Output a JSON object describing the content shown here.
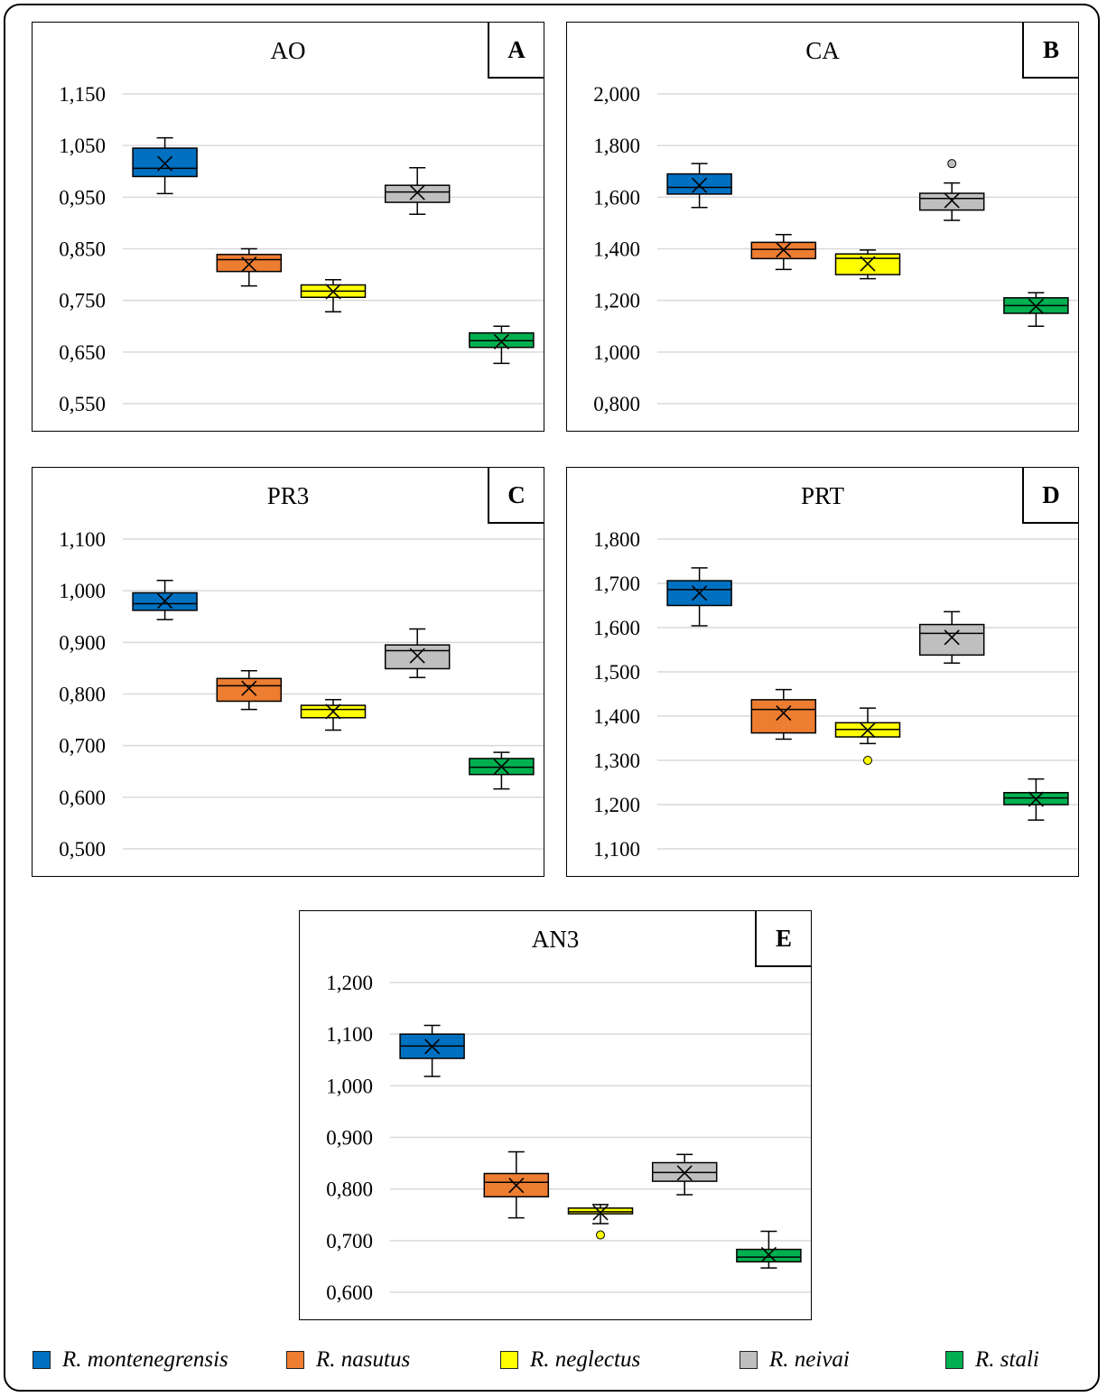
{
  "colors": {
    "R. montenegrensis": "#0070c0",
    "R. nasutus": "#ed7d31",
    "R. neglectus": "#ffff00",
    "R. neivai": "#bfbfbf",
    "R. stali": "#00b050"
  },
  "legend": [
    "R. montenegrensis",
    "R. nasutus",
    "R. neglectus",
    "R. neivai",
    "R. stali"
  ],
  "panels": {
    "A": {
      "title": "AO",
      "letter": "A"
    },
    "B": {
      "title": "CA",
      "letter": "B"
    },
    "C": {
      "title": "PR3",
      "letter": "C"
    },
    "D": {
      "title": "PRT",
      "letter": "D"
    },
    "E": {
      "title": "AN3",
      "letter": "E"
    }
  },
  "chart_data": [
    {
      "type": "box",
      "title": "AO",
      "ylim": [
        0.55,
        1.15
      ],
      "yticks": [
        0.55,
        0.65,
        0.75,
        0.85,
        0.95,
        1.05,
        1.15
      ],
      "ytick_labels": [
        "0,550",
        "0,650",
        "0,750",
        "0,850",
        "0,950",
        "1,050",
        "1,150"
      ],
      "gridlines": true,
      "series": [
        {
          "name": "R. montenegrensis",
          "min": 0.957,
          "q1": 0.99,
          "median": 1.006,
          "q3": 1.045,
          "max": 1.065,
          "mean": 1.015,
          "outliers": []
        },
        {
          "name": "R. nasutus",
          "min": 0.778,
          "q1": 0.806,
          "median": 0.829,
          "q3": 0.839,
          "max": 0.85,
          "mean": 0.82,
          "outliers": []
        },
        {
          "name": "R. neglectus",
          "min": 0.728,
          "q1": 0.756,
          "median": 0.768,
          "q3": 0.78,
          "max": 0.79,
          "mean": 0.767,
          "outliers": []
        },
        {
          "name": "R. neivai",
          "min": 0.917,
          "q1": 0.94,
          "median": 0.96,
          "q3": 0.973,
          "max": 1.007,
          "mean": 0.959,
          "outliers": []
        },
        {
          "name": "R. stali",
          "min": 0.628,
          "q1": 0.659,
          "median": 0.672,
          "q3": 0.687,
          "max": 0.7,
          "mean": 0.67,
          "outliers": []
        }
      ]
    },
    {
      "type": "box",
      "title": "CA",
      "ylim": [
        0.8,
        2.0
      ],
      "yticks": [
        0.8,
        1.0,
        1.2,
        1.4,
        1.6,
        1.8,
        2.0
      ],
      "ytick_labels": [
        "0,800",
        "1,000",
        "1,200",
        "1,400",
        "1,600",
        "1,800",
        "2,000"
      ],
      "gridlines": true,
      "series": [
        {
          "name": "R. montenegrensis",
          "min": 1.56,
          "q1": 1.612,
          "median": 1.638,
          "q3": 1.69,
          "max": 1.73,
          "mean": 1.646,
          "outliers": []
        },
        {
          "name": "R. nasutus",
          "min": 1.32,
          "q1": 1.362,
          "median": 1.398,
          "q3": 1.425,
          "max": 1.455,
          "mean": 1.396,
          "outliers": []
        },
        {
          "name": "R. neglectus",
          "min": 1.284,
          "q1": 1.3,
          "median": 1.363,
          "q3": 1.38,
          "max": 1.395,
          "mean": 1.342,
          "outliers": []
        },
        {
          "name": "R. neivai",
          "min": 1.51,
          "q1": 1.55,
          "median": 1.595,
          "q3": 1.615,
          "max": 1.655,
          "mean": 1.587,
          "outliers": [
            1.73
          ]
        },
        {
          "name": "R. stali",
          "min": 1.1,
          "q1": 1.15,
          "median": 1.18,
          "q3": 1.21,
          "max": 1.23,
          "mean": 1.177,
          "outliers": []
        }
      ]
    },
    {
      "type": "box",
      "title": "PR3",
      "ylim": [
        0.5,
        1.1
      ],
      "yticks": [
        0.5,
        0.6,
        0.7,
        0.8,
        0.9,
        1.0,
        1.1
      ],
      "ytick_labels": [
        "0,500",
        "0,600",
        "0,700",
        "0,800",
        "0,900",
        "1,000",
        "1,100"
      ],
      "gridlines": true,
      "series": [
        {
          "name": "R. montenegrensis",
          "min": 0.944,
          "q1": 0.962,
          "median": 0.975,
          "q3": 0.996,
          "max": 1.02,
          "mean": 0.98,
          "outliers": []
        },
        {
          "name": "R. nasutus",
          "min": 0.77,
          "q1": 0.786,
          "median": 0.816,
          "q3": 0.83,
          "max": 0.845,
          "mean": 0.811,
          "outliers": []
        },
        {
          "name": "R. neglectus",
          "min": 0.73,
          "q1": 0.754,
          "median": 0.77,
          "q3": 0.778,
          "max": 0.789,
          "mean": 0.766,
          "outliers": []
        },
        {
          "name": "R. neivai",
          "min": 0.832,
          "q1": 0.849,
          "median": 0.884,
          "q3": 0.895,
          "max": 0.926,
          "mean": 0.874,
          "outliers": []
        },
        {
          "name": "R. stali",
          "min": 0.616,
          "q1": 0.644,
          "median": 0.658,
          "q3": 0.675,
          "max": 0.687,
          "mean": 0.659,
          "outliers": []
        }
      ]
    },
    {
      "type": "box",
      "title": "PRT",
      "ylim": [
        1.1,
        1.8
      ],
      "yticks": [
        1.1,
        1.2,
        1.3,
        1.4,
        1.5,
        1.6,
        1.7,
        1.8
      ],
      "ytick_labels": [
        "1,100",
        "1,200",
        "1,300",
        "1,400",
        "1,500",
        "1,600",
        "1,700",
        "1,800"
      ],
      "gridlines": true,
      "series": [
        {
          "name": "R. montenegrensis",
          "min": 1.604,
          "q1": 1.65,
          "median": 1.686,
          "q3": 1.706,
          "max": 1.735,
          "mean": 1.678,
          "outliers": []
        },
        {
          "name": "R. nasutus",
          "min": 1.348,
          "q1": 1.362,
          "median": 1.415,
          "q3": 1.437,
          "max": 1.46,
          "mean": 1.407,
          "outliers": []
        },
        {
          "name": "R. neglectus",
          "min": 1.338,
          "q1": 1.353,
          "median": 1.37,
          "q3": 1.385,
          "max": 1.418,
          "mean": 1.368,
          "outliers": [
            1.3
          ]
        },
        {
          "name": "R. neivai",
          "min": 1.52,
          "q1": 1.538,
          "median": 1.587,
          "q3": 1.607,
          "max": 1.636,
          "mean": 1.578,
          "outliers": []
        },
        {
          "name": "R. stali",
          "min": 1.165,
          "q1": 1.2,
          "median": 1.215,
          "q3": 1.227,
          "max": 1.258,
          "mean": 1.212,
          "outliers": []
        }
      ]
    },
    {
      "type": "box",
      "title": "AN3",
      "ylim": [
        0.6,
        1.2
      ],
      "yticks": [
        0.6,
        0.7,
        0.8,
        0.9,
        1.0,
        1.1,
        1.2
      ],
      "ytick_labels": [
        "0,600",
        "0,700",
        "0,800",
        "0,900",
        "1,000",
        "1,100",
        "1,200"
      ],
      "gridlines": true,
      "series": [
        {
          "name": "R. montenegrensis",
          "min": 1.018,
          "q1": 1.053,
          "median": 1.077,
          "q3": 1.1,
          "max": 1.117,
          "mean": 1.076,
          "outliers": []
        },
        {
          "name": "R. nasutus",
          "min": 0.744,
          "q1": 0.785,
          "median": 0.813,
          "q3": 0.83,
          "max": 0.872,
          "mean": 0.807,
          "outliers": []
        },
        {
          "name": "R. neglectus",
          "min": 0.733,
          "q1": 0.752,
          "median": 0.756,
          "q3": 0.763,
          "max": 0.77,
          "mean": 0.754,
          "outliers": [
            0.711
          ]
        },
        {
          "name": "R. neivai",
          "min": 0.789,
          "q1": 0.815,
          "median": 0.832,
          "q3": 0.851,
          "max": 0.867,
          "mean": 0.831,
          "outliers": []
        },
        {
          "name": "R. stali",
          "min": 0.647,
          "q1": 0.659,
          "median": 0.668,
          "q3": 0.683,
          "max": 0.718,
          "mean": 0.673,
          "outliers": []
        }
      ]
    }
  ]
}
